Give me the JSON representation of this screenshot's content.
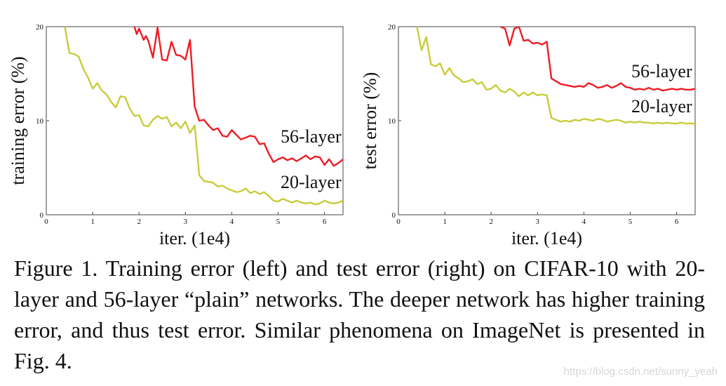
{
  "chart_data": [
    {
      "type": "line",
      "title": "",
      "xlabel": "iter. (1e4)",
      "ylabel": "training error (%)",
      "xlim": [
        0,
        6.4
      ],
      "ylim": [
        0,
        20
      ],
      "x_ticks": [
        0,
        1,
        2,
        3,
        4,
        5,
        6
      ],
      "y_ticks": [
        0,
        10,
        20
      ],
      "grid": false,
      "series": [
        {
          "name": "56-layer",
          "color": "#ee1c25",
          "x": [
            1.9,
            1.95,
            2.0,
            2.1,
            2.15,
            2.2,
            2.3,
            2.4,
            2.5,
            2.6,
            2.7,
            2.8,
            2.9,
            3.0,
            3.1,
            3.2,
            3.3,
            3.4,
            3.5,
            3.6,
            3.7,
            3.8,
            3.9,
            4.0,
            4.1,
            4.2,
            4.3,
            4.4,
            4.5,
            4.6,
            4.7,
            4.8,
            4.9,
            5.0,
            5.1,
            5.2,
            5.3,
            5.4,
            5.5,
            5.6,
            5.7,
            5.8,
            5.9,
            6.0,
            6.1,
            6.2,
            6.3,
            6.4
          ],
          "y": [
            20,
            19.2,
            19.8,
            18.6,
            19.0,
            18.5,
            16.7,
            19.9,
            16.5,
            16.4,
            18.4,
            17.0,
            16.9,
            16.5,
            18.6,
            11.5,
            10.0,
            10.1,
            9.5,
            9.0,
            9.2,
            8.4,
            8.3,
            9.0,
            8.5,
            8.0,
            8.2,
            8.4,
            8.3,
            7.5,
            7.6,
            6.5,
            5.6,
            5.9,
            6.1,
            5.8,
            6.0,
            5.7,
            6.0,
            6.3,
            5.9,
            6.2,
            6.1,
            5.3,
            5.9,
            5.2,
            5.5,
            5.9
          ]
        },
        {
          "name": "20-layer",
          "color": "#c8cc3a",
          "x": [
            0.4,
            0.5,
            0.6,
            0.7,
            0.8,
            0.9,
            1.0,
            1.1,
            1.2,
            1.3,
            1.4,
            1.5,
            1.6,
            1.7,
            1.8,
            1.9,
            2.0,
            2.1,
            2.2,
            2.3,
            2.4,
            2.5,
            2.6,
            2.7,
            2.8,
            2.9,
            3.0,
            3.1,
            3.2,
            3.3,
            3.4,
            3.5,
            3.6,
            3.7,
            3.8,
            3.9,
            4.0,
            4.1,
            4.2,
            4.3,
            4.4,
            4.5,
            4.6,
            4.7,
            4.8,
            4.9,
            5.0,
            5.1,
            5.2,
            5.3,
            5.4,
            5.5,
            5.6,
            5.7,
            5.8,
            5.9,
            6.0,
            6.1,
            6.2,
            6.3,
            6.4
          ],
          "y": [
            20,
            17.2,
            17.1,
            16.8,
            15.5,
            14.6,
            13.4,
            14.0,
            13.2,
            12.8,
            12.0,
            11.4,
            12.6,
            12.5,
            11.3,
            10.5,
            10.6,
            9.5,
            9.4,
            10.1,
            10.5,
            10.2,
            10.4,
            9.4,
            9.8,
            9.2,
            9.9,
            8.7,
            9.5,
            4.2,
            3.6,
            3.5,
            3.4,
            3.0,
            3.1,
            2.8,
            2.6,
            2.4,
            2.5,
            2.8,
            2.3,
            2.5,
            2.2,
            2.4,
            2.0,
            1.5,
            1.4,
            1.7,
            1.5,
            1.3,
            1.5,
            1.3,
            1.2,
            1.3,
            1.1,
            1.2,
            1.5,
            1.3,
            1.2,
            1.3,
            1.5
          ]
        }
      ]
    },
    {
      "type": "line",
      "title": "",
      "xlabel": "iter. (1e4)",
      "ylabel": "test error (%)",
      "xlim": [
        0,
        6.4
      ],
      "ylim": [
        0,
        20
      ],
      "x_ticks": [
        0,
        1,
        2,
        3,
        4,
        5,
        6
      ],
      "y_ticks": [
        0,
        10,
        20
      ],
      "grid": false,
      "series": [
        {
          "name": "56-layer",
          "color": "#ee1c25",
          "x": [
            2.2,
            2.3,
            2.4,
            2.5,
            2.6,
            2.7,
            2.8,
            2.9,
            3.0,
            3.1,
            3.2,
            3.3,
            3.4,
            3.5,
            3.6,
            3.7,
            3.8,
            3.9,
            4.0,
            4.1,
            4.2,
            4.3,
            4.4,
            4.5,
            4.6,
            4.7,
            4.8,
            4.9,
            5.0,
            5.1,
            5.2,
            5.3,
            5.4,
            5.5,
            5.6,
            5.7,
            5.8,
            5.9,
            6.0,
            6.1,
            6.2,
            6.3,
            6.4
          ],
          "y": [
            20,
            19.8,
            18.0,
            19.8,
            20.0,
            18.5,
            18.6,
            18.2,
            18.3,
            18.1,
            18.4,
            14.5,
            14.2,
            13.9,
            13.8,
            13.7,
            13.6,
            13.7,
            13.6,
            14.0,
            13.8,
            13.5,
            13.6,
            13.8,
            13.5,
            13.7,
            14.0,
            13.6,
            13.5,
            13.3,
            13.4,
            13.3,
            13.5,
            13.3,
            13.4,
            13.2,
            13.3,
            13.4,
            13.3,
            13.4,
            13.3,
            13.3,
            13.4
          ]
        },
        {
          "name": "20-layer",
          "color": "#c8cc3a",
          "x": [
            0.4,
            0.5,
            0.6,
            0.7,
            0.8,
            0.9,
            1.0,
            1.1,
            1.2,
            1.3,
            1.4,
            1.5,
            1.6,
            1.7,
            1.8,
            1.9,
            2.0,
            2.1,
            2.2,
            2.3,
            2.4,
            2.5,
            2.6,
            2.7,
            2.8,
            2.9,
            3.0,
            3.1,
            3.2,
            3.3,
            3.4,
            3.5,
            3.6,
            3.7,
            3.8,
            3.9,
            4.0,
            4.1,
            4.2,
            4.3,
            4.4,
            4.5,
            4.6,
            4.7,
            4.8,
            4.9,
            5.0,
            5.1,
            5.2,
            5.3,
            5.4,
            5.5,
            5.6,
            5.7,
            5.8,
            5.9,
            6.0,
            6.1,
            6.2,
            6.3,
            6.4
          ],
          "y": [
            20,
            17.5,
            18.9,
            16.0,
            15.8,
            16.1,
            14.9,
            15.6,
            14.8,
            14.5,
            14.1,
            14.2,
            14.4,
            13.9,
            14.1,
            13.3,
            13.4,
            13.8,
            13.2,
            13.0,
            13.4,
            13.1,
            12.6,
            13.0,
            12.7,
            13.0,
            12.7,
            12.8,
            12.7,
            10.3,
            10.1,
            9.9,
            10.0,
            9.9,
            10.1,
            10.0,
            10.2,
            10.1,
            10.0,
            10.2,
            10.1,
            9.9,
            10.0,
            10.1,
            10.0,
            9.8,
            9.9,
            9.8,
            9.9,
            9.8,
            9.8,
            9.7,
            9.8,
            9.7,
            9.8,
            9.7,
            9.7,
            9.8,
            9.7,
            9.7,
            9.7
          ]
        }
      ]
    }
  ],
  "caption": "Figure 1. Training error (left) and test error (right) on CIFAR-10 with 20-layer and 56-layer “plain” networks. The deeper network has higher training error, and thus test error. Similar phenomena on ImageNet is presented in Fig. 4.",
  "watermark": "https://blog.csdn.net/sunny_yeah"
}
